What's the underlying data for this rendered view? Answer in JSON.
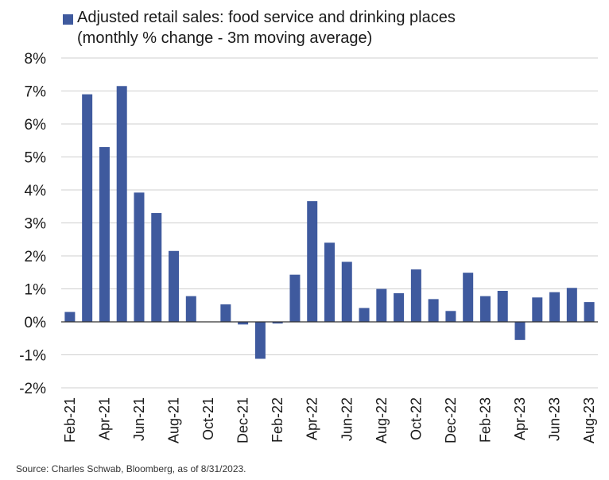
{
  "legend": {
    "label_line1": "Adjusted retail sales: food service and drinking places",
    "label_line2": "(monthly % change - 3m moving average)"
  },
  "source": "Source: Charles Schwab, Bloomberg, as of 8/31/2023.",
  "colors": {
    "bar": "#3f5a9e",
    "grid": "#cfcfcf",
    "axis": "#333333"
  },
  "chart_data": {
    "type": "bar",
    "categories": [
      "Feb-21",
      "Mar-21",
      "Apr-21",
      "May-21",
      "Jun-21",
      "Jul-21",
      "Aug-21",
      "Sep-21",
      "Oct-21",
      "Nov-21",
      "Dec-21",
      "Jan-22",
      "Feb-22",
      "Mar-22",
      "Apr-22",
      "May-22",
      "Jun-22",
      "Jul-22",
      "Aug-22",
      "Sep-22",
      "Oct-22",
      "Nov-22",
      "Dec-22",
      "Jan-23",
      "Feb-23",
      "Mar-23",
      "Apr-23",
      "May-23",
      "Jun-23",
      "Jul-23",
      "Aug-23"
    ],
    "x_tick_labels": [
      "Feb-21",
      "Apr-21",
      "Jun-21",
      "Aug-21",
      "Oct-21",
      "Dec-21",
      "Feb-22",
      "Apr-22",
      "Jun-22",
      "Aug-22",
      "Oct-22",
      "Dec-22",
      "Feb-23",
      "Apr-23",
      "Jun-23",
      "Aug-23"
    ],
    "series": [
      {
        "name": "Adjusted retail sales: food service and drinking places",
        "values": [
          0.3,
          6.9,
          5.3,
          7.15,
          3.92,
          3.3,
          2.15,
          0.78,
          0.0,
          0.53,
          -0.08,
          -1.12,
          -0.05,
          1.43,
          3.66,
          2.4,
          1.82,
          0.42,
          1.0,
          0.87,
          1.59,
          0.69,
          0.33,
          1.49,
          0.78,
          0.94,
          -0.55,
          0.74,
          0.9,
          1.03,
          0.6
        ]
      }
    ],
    "y_ticks": [
      -2,
      -1,
      0,
      1,
      2,
      3,
      4,
      5,
      6,
      7,
      8
    ],
    "y_tick_labels": [
      "-2%",
      "-1%",
      "0%",
      "1%",
      "2%",
      "3%",
      "4%",
      "5%",
      "6%",
      "7%",
      "8%"
    ],
    "ylim": [
      -2,
      8
    ],
    "value_suffix": "%",
    "grid": true,
    "legend_position": "top-left"
  }
}
